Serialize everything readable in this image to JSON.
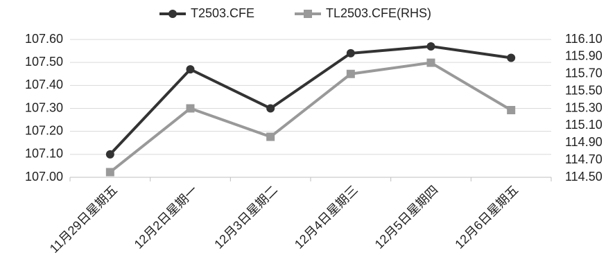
{
  "chart_data": {
    "type": "line",
    "categories": [
      "11月29日星期五",
      "12月2日星期一",
      "12月3日星期二",
      "12月4日星期三",
      "12月5日星期四",
      "12月6日星期五"
    ],
    "series": [
      {
        "name": "T2503.CFE",
        "color": "#333333",
        "marker": "circle",
        "values": [
          107.1,
          107.47,
          107.3,
          107.54,
          107.57,
          107.52
        ]
      },
      {
        "name": "TL2503.CFE(RHS)",
        "color": "#999999",
        "marker": "square",
        "axis": "y2",
        "values": [
          114.56,
          115.3,
          114.97,
          115.7,
          115.83,
          115.28
        ]
      }
    ],
    "ylim": [
      107.0,
      107.6
    ],
    "yticks": [
      {
        "value": 107.0,
        "label": "107.00"
      },
      {
        "value": 107.1,
        "label": "107.10"
      },
      {
        "value": 107.2,
        "label": "107.20"
      },
      {
        "value": 107.3,
        "label": "107.30"
      },
      {
        "value": 107.4,
        "label": "107.40"
      },
      {
        "value": 107.5,
        "label": "107.50"
      },
      {
        "value": 107.6,
        "label": "107.60"
      }
    ],
    "y2lim": [
      114.5,
      116.1
    ],
    "y2ticks": [
      {
        "value": 114.5,
        "label": "114.50"
      },
      {
        "value": 114.7,
        "label": "114.70"
      },
      {
        "value": 114.9,
        "label": "114.90"
      },
      {
        "value": 115.1,
        "label": "115.10"
      },
      {
        "value": 115.3,
        "label": "115.30"
      },
      {
        "value": 115.5,
        "label": "115.50"
      },
      {
        "value": 115.7,
        "label": "115.70"
      },
      {
        "value": 115.9,
        "label": "115.90"
      },
      {
        "value": 116.1,
        "label": "116.10"
      }
    ],
    "grid": true,
    "legend": "top"
  }
}
